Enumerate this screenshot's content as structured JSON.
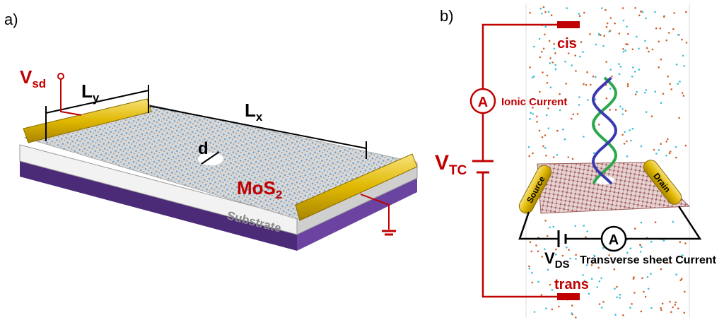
{
  "panel_a": {
    "label": "a)",
    "vsd": {
      "main": "V",
      "sub": "sd"
    },
    "ly": {
      "main": "L",
      "sub": "y"
    },
    "lx": {
      "main": "L",
      "sub": "x"
    },
    "d": "d",
    "mos2": {
      "main": "MoS",
      "sub": "2"
    },
    "substrate": "Substrate"
  },
  "panel_b": {
    "label": "b)",
    "cis": "cis",
    "ionic_ammeter": "A",
    "ionic_current": "Ionic Current",
    "vtc": {
      "main": "V",
      "sub": "TC"
    },
    "source": "Source",
    "drain": "Drain",
    "vds": {
      "main": "V",
      "sub": "DS"
    },
    "sheet_ammeter": "A",
    "sheet_current": "Transverse sheet Current",
    "trans": "trans"
  }
}
